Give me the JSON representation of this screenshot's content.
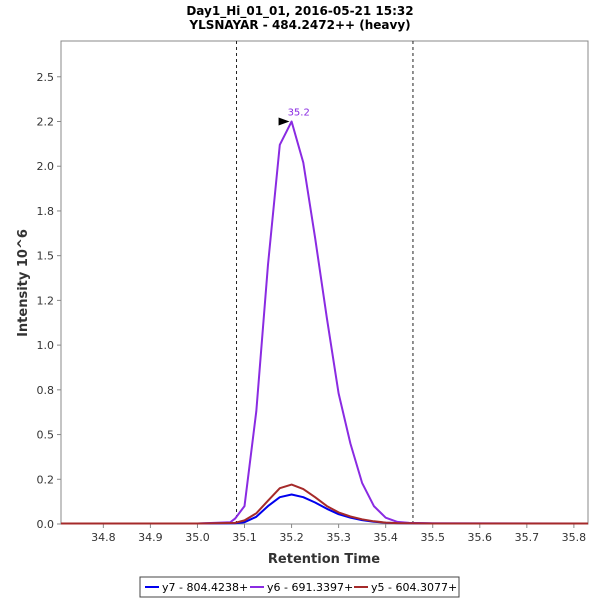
{
  "chart_data": {
    "type": "line",
    "title": "Day1_Hi_01_01, 2016-05-21 15:32",
    "subtitle": "YLSNAYAR - 484.2472++ (heavy)",
    "xlabel": "Retention Time",
    "ylabel": "Intensity 10^6",
    "xlim": [
      34.71,
      35.83
    ],
    "ylim": [
      0,
      2.7
    ],
    "x_ticks": [
      "34.8",
      "34.9",
      "35.0",
      "35.1",
      "35.2",
      "35.3",
      "35.4",
      "35.5",
      "35.6",
      "35.7",
      "35.8"
    ],
    "y_ticks": [
      "0.0",
      "0.2",
      "0.5",
      "0.8",
      "1.0",
      "1.2",
      "1.5",
      "1.8",
      "2.0",
      "2.2",
      "2.5"
    ],
    "x_tick_values": [
      34.8,
      34.9,
      35.0,
      35.1,
      35.2,
      35.3,
      35.4,
      35.5,
      35.6,
      35.7,
      35.8
    ],
    "y_tick_values": [
      0.0,
      0.25,
      0.5,
      0.75,
      1.0,
      1.25,
      1.5,
      1.75,
      2.0,
      2.25,
      2.5
    ],
    "boundaries": [
      35.083,
      35.458
    ],
    "peak_annotation": {
      "label": "35.2",
      "x": 35.2,
      "y": 2.25,
      "color": "#8a2be2"
    },
    "series": [
      {
        "name": "y7 - 804.4238+",
        "color": "#0000ee",
        "x": [
          34.71,
          35.0,
          35.08,
          35.1,
          35.125,
          35.15,
          35.175,
          35.2,
          35.225,
          35.25,
          35.275,
          35.3,
          35.325,
          35.35,
          35.375,
          35.4,
          35.425,
          35.45,
          35.5,
          35.83
        ],
        "values": [
          0.003,
          0.003,
          0.004,
          0.01,
          0.04,
          0.1,
          0.15,
          0.165,
          0.15,
          0.12,
          0.085,
          0.055,
          0.035,
          0.022,
          0.013,
          0.007,
          0.005,
          0.004,
          0.003,
          0.003
        ]
      },
      {
        "name": "y6 - 691.3397+",
        "color": "#8a2be2",
        "x": [
          34.71,
          35.0,
          35.07,
          35.08,
          35.1,
          35.125,
          35.15,
          35.175,
          35.2,
          35.225,
          35.25,
          35.275,
          35.3,
          35.325,
          35.35,
          35.375,
          35.4,
          35.425,
          35.45,
          35.5,
          35.83
        ],
        "values": [
          0.003,
          0.003,
          0.01,
          0.03,
          0.1,
          0.63,
          1.45,
          2.12,
          2.25,
          2.02,
          1.6,
          1.15,
          0.73,
          0.45,
          0.23,
          0.1,
          0.035,
          0.012,
          0.006,
          0.004,
          0.003
        ]
      },
      {
        "name": "y5 - 604.3077+",
        "color": "#a52a2a",
        "x": [
          34.71,
          35.0,
          35.08,
          35.1,
          35.125,
          35.15,
          35.175,
          35.2,
          35.225,
          35.25,
          35.275,
          35.3,
          35.325,
          35.35,
          35.375,
          35.4,
          35.425,
          35.45,
          35.5,
          35.83
        ],
        "values": [
          0.003,
          0.003,
          0.006,
          0.02,
          0.06,
          0.13,
          0.2,
          0.22,
          0.195,
          0.15,
          0.1,
          0.065,
          0.042,
          0.026,
          0.015,
          0.008,
          0.005,
          0.004,
          0.003,
          0.003
        ]
      }
    ]
  }
}
